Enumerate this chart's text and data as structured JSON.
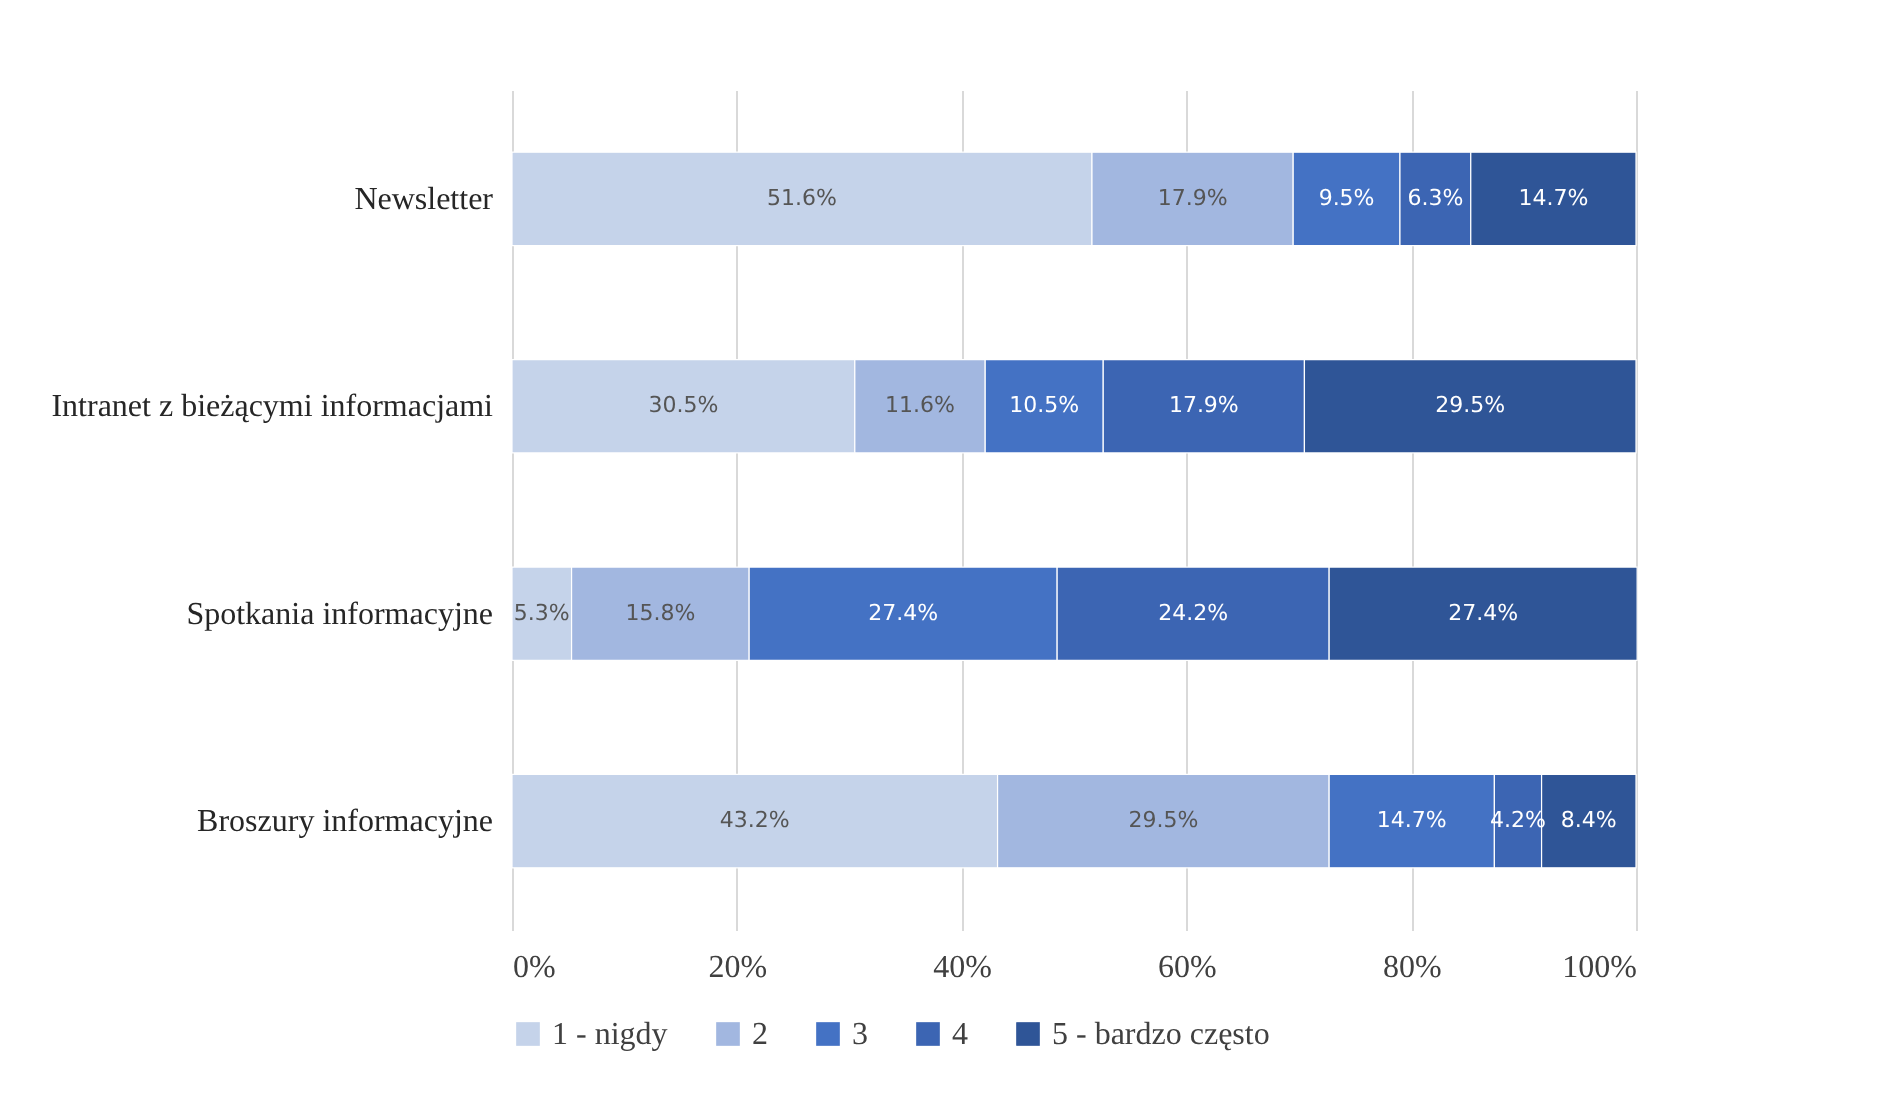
{
  "chart_data": {
    "type": "bar",
    "orientation": "horizontal",
    "stacked": true,
    "categories": [
      "Newsletter",
      "Intranet z bieżącymi informacjami",
      "Spotkania informacyjne",
      "Broszury informacyjne"
    ],
    "series": [
      {
        "name": "1 - nigdy",
        "color": "#c5d3ea",
        "values": [
          51.6,
          30.5,
          5.3,
          43.2
        ],
        "value_labels": [
          "51.6%",
          "30.5%",
          "5.3%",
          "43.2%"
        ]
      },
      {
        "name": "2",
        "color": "#a2b7e0",
        "values": [
          17.9,
          11.6,
          15.8,
          29.5
        ],
        "value_labels": [
          "17.9%",
          "11.6%",
          "15.8%",
          "29.5%"
        ]
      },
      {
        "name": "3",
        "color": "#4472c4",
        "values": [
          9.5,
          10.5,
          27.4,
          14.7
        ],
        "value_labels": [
          "9.5%",
          "10.5%",
          "27.4%",
          "14.7%"
        ]
      },
      {
        "name": "4",
        "color": "#3c65b3",
        "values": [
          6.3,
          17.9,
          24.2,
          4.2
        ],
        "value_labels": [
          "6.3%",
          "17.9%",
          "24.2%",
          "4.2%"
        ]
      },
      {
        "name": "5 - bardzo często",
        "color": "#2f5597",
        "values": [
          14.7,
          29.5,
          27.4,
          8.4
        ],
        "value_labels": [
          "14.7%",
          "29.5%",
          "27.4%",
          "8.4%"
        ]
      }
    ],
    "xlim": [
      0,
      100
    ],
    "xticks": [
      {
        "value": 0,
        "label": "0%"
      },
      {
        "value": 20,
        "label": "20%"
      },
      {
        "value": 40,
        "label": "40%"
      },
      {
        "value": 60,
        "label": "60%"
      },
      {
        "value": 80,
        "label": "80%"
      },
      {
        "value": 100,
        "label": "100%"
      }
    ],
    "grid": "x",
    "legend": "bottom"
  }
}
